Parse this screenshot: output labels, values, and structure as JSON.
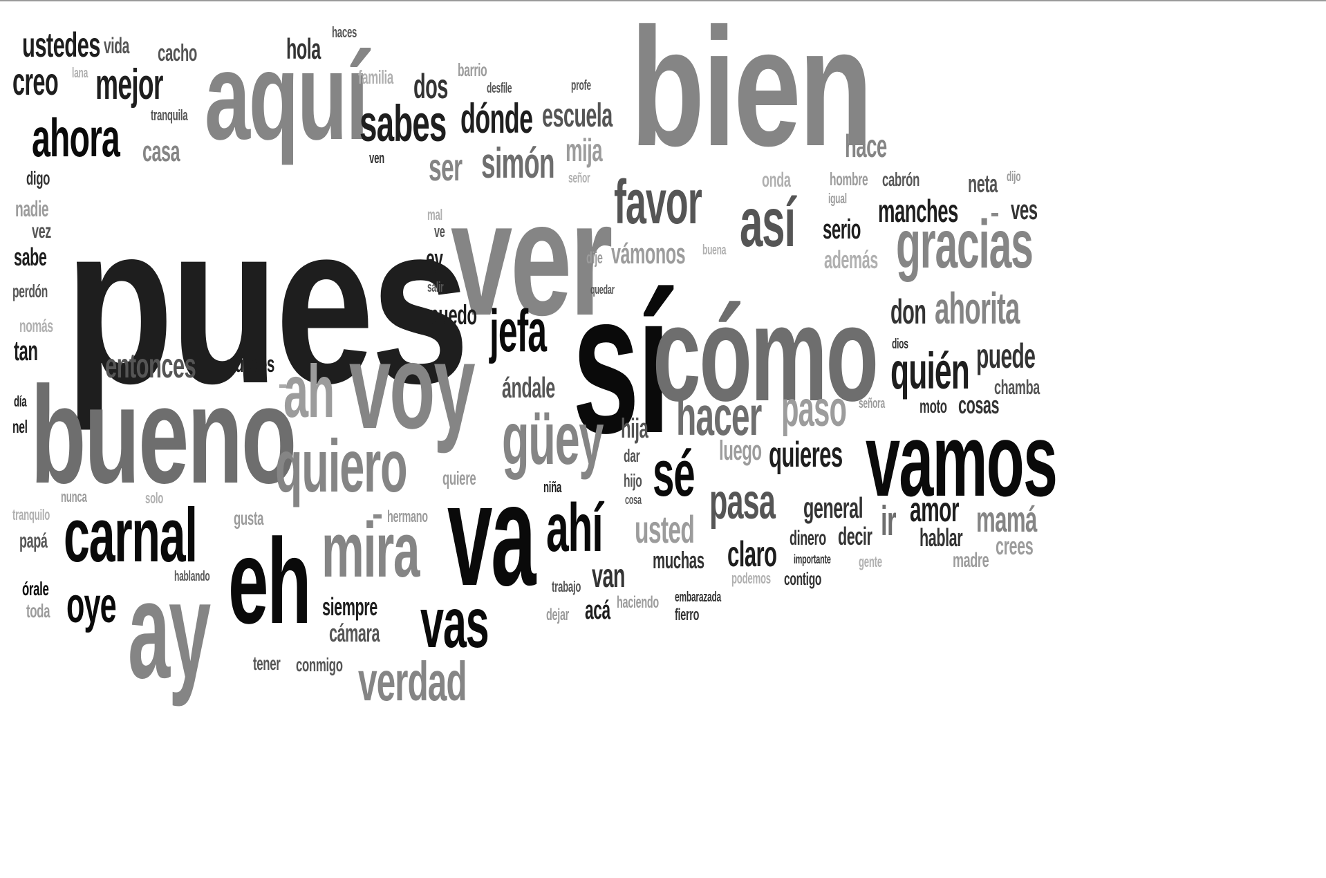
{
  "words": [
    "pues",
    "bien",
    "ver",
    "sí",
    "cómo",
    "bueno",
    "aquí",
    "voy",
    "va",
    "vamos",
    "eh",
    "ay",
    "carnal",
    "mira",
    "quiero",
    "güey",
    "ah",
    "gracias",
    "sé",
    "ahí",
    "vas",
    "verdad",
    "así",
    "favor",
    "hacer",
    "ahora",
    "sabes",
    "jefa",
    "pasa",
    "quién",
    "ahorita",
    "paso",
    "oye",
    "usted",
    "simón",
    "dónde",
    "ser",
    "mejor",
    "ustedes",
    "entonces",
    "escuela",
    "claro",
    "quieres",
    "manches",
    "creo",
    "mija",
    "hace",
    "amor",
    "mamá",
    "don",
    "puede",
    "van",
    "ir",
    "muchas",
    "dos",
    "casa",
    "hola",
    "cacho",
    "vida",
    "siempre",
    "cámara",
    "puedes",
    "puedo",
    "ándale",
    "vámonos",
    "general",
    "decir",
    "dinero",
    "hablar",
    "acá",
    "luego",
    "hija",
    "serio",
    "ves",
    "neta",
    "además",
    "cosas",
    "crees",
    "madre",
    "tan",
    "sabe",
    "vez",
    "nadie",
    "digo",
    "perdón",
    "nomás",
    "día",
    "nel",
    "órale",
    "toda",
    "papá",
    "tranquilo",
    "nunca",
    "solo",
    "gusta",
    "hermano",
    "hablando",
    "tener",
    "conmigo",
    "dejar",
    "trabajo",
    "haciendo",
    "embarazada",
    "fierro",
    "importante",
    "contigo",
    "podemos",
    "gente",
    "chamba",
    "moto",
    "señora",
    "dios",
    "hombre",
    "cabrón",
    "igual",
    "dijo",
    "onda",
    "buena",
    "dije",
    "quedar",
    "salir",
    "ey",
    "ve",
    "mal",
    "señor",
    "ven",
    "tranquila",
    "lana",
    "familia",
    "barrio",
    "desfile",
    "profe",
    "haces",
    "quiere",
    "niña",
    "hijo",
    "cosa",
    "dar"
  ],
  "colors": {
    "background": "#ffffff",
    "darkest": "#0a0a0a",
    "lightest": "#b0b0b0"
  }
}
